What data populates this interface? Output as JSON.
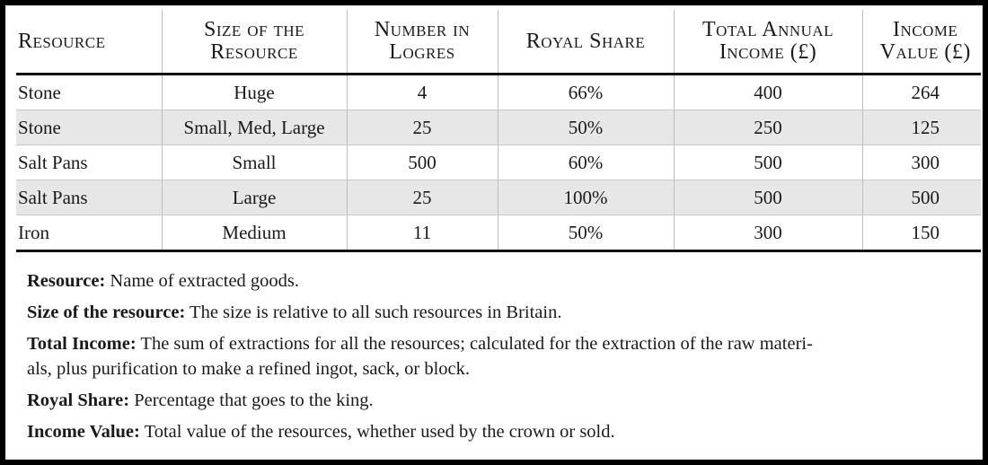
{
  "table": {
    "headers": [
      [
        "Resource"
      ],
      [
        "Size of the",
        "Resource"
      ],
      [
        "Number in",
        "Logres"
      ],
      [
        "Royal Share"
      ],
      [
        "Total Annual",
        "Income (£)"
      ],
      [
        "Income",
        "Value (£)"
      ]
    ],
    "rows": [
      [
        "Stone",
        "Huge",
        "4",
        "66%",
        "400",
        "264"
      ],
      [
        "Stone",
        "Small, Med, Large",
        "25",
        "50%",
        "250",
        "125"
      ],
      [
        "Salt Pans",
        "Small",
        "500",
        "60%",
        "500",
        "300"
      ],
      [
        "Salt Pans",
        "Large",
        "25",
        "100%",
        "500",
        "500"
      ],
      [
        "Iron",
        "Medium",
        "11",
        "50%",
        "300",
        "150"
      ]
    ]
  },
  "notes": [
    {
      "term": "Resource:",
      "text": " Name of extracted goods."
    },
    {
      "term": "Size of the resource:",
      "text": " The size is relative to all such resources in Britain."
    },
    {
      "term": "Total Income:",
      "text": " The sum of extractions for all the resources; calculated for the extraction of the raw materi-",
      "text2": "als, plus purification to make a refined ingot, sack, or block."
    },
    {
      "term": "Royal Share:",
      "text": " Percentage that goes to the king."
    },
    {
      "term": "Income Value:",
      "text": " Total value of the resources, whether used by the crown or sold."
    }
  ]
}
